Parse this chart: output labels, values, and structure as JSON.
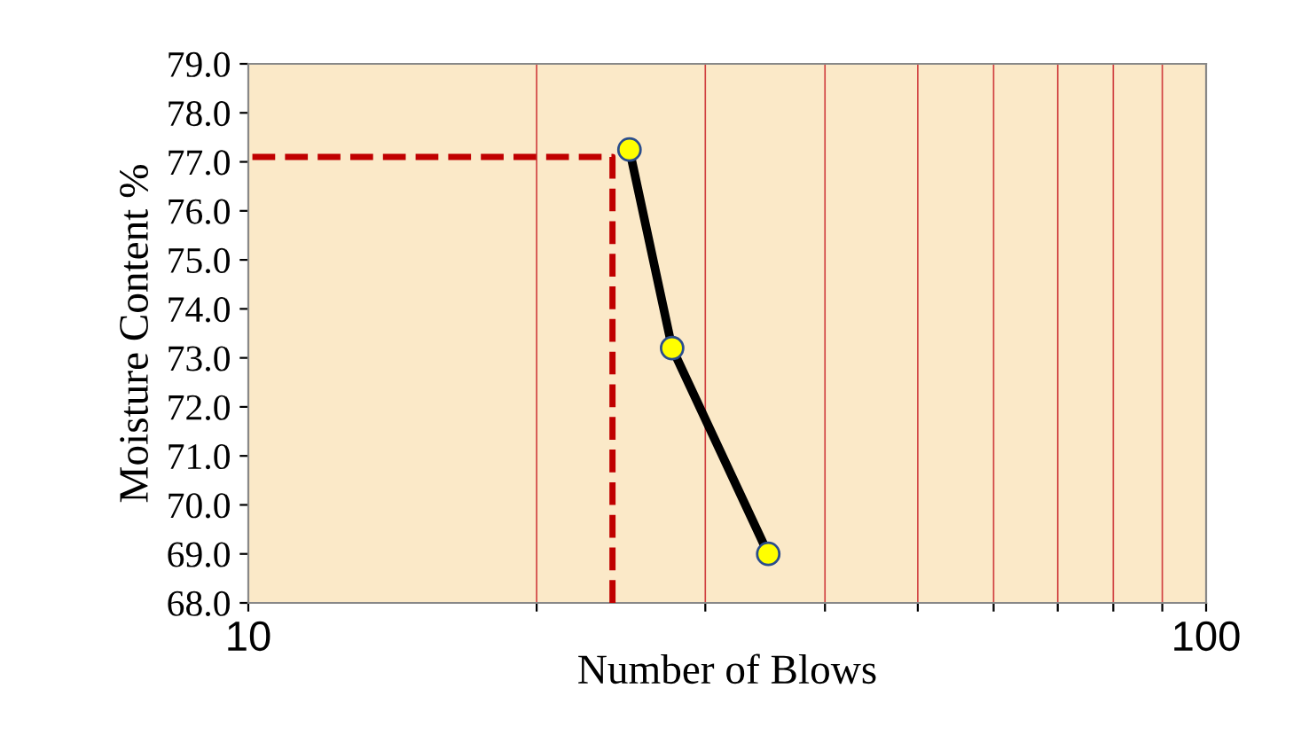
{
  "chart_data": {
    "type": "line",
    "xlabel": "Number of Blows",
    "ylabel": "Moisture Content %",
    "xlim": [
      10,
      100
    ],
    "xticks": [
      10,
      {
        "value": 20,
        "label": null
      },
      {
        "value": 30,
        "label": null
      },
      {
        "value": 40,
        "label": null
      },
      {
        "value": 50,
        "label": null
      },
      {
        "value": 60,
        "label": null
      },
      {
        "value": 70,
        "label": null
      },
      {
        "value": 80,
        "label": null
      },
      {
        "value": 90,
        "label": null
      },
      100
    ],
    "log": "x",
    "ylim": [
      68,
      79
    ],
    "yticks": [
      {
        "value": 68,
        "label": "68.0"
      },
      {
        "value": 69,
        "label": "69.0"
      },
      {
        "value": 70,
        "label": "70.0"
      },
      {
        "value": 71,
        "label": "71.0"
      },
      {
        "value": 72,
        "label": "72.0"
      },
      {
        "value": 73,
        "label": "73.0"
      },
      {
        "value": 74,
        "label": "74.0"
      },
      {
        "value": 75,
        "label": "75.0"
      },
      {
        "value": 76,
        "label": "76.0"
      },
      {
        "value": 77,
        "label": "77.0"
      },
      {
        "value": 78,
        "label": "78.0"
      },
      {
        "value": 79,
        "label": "79.0"
      }
    ],
    "grid": "x",
    "marker": "circle",
    "series": [
      {
        "color": "#c00000",
        "line_style": "dashed",
        "marker": "none",
        "x": [
          24,
          24,
          10
        ],
        "values": [
          68,
          77.1,
          77.1
        ]
      },
      {
        "color": "#000000",
        "line_style": "solid",
        "x": [
          25,
          27.7,
          34.9
        ],
        "values": [
          77.25,
          73.2,
          69.0
        ]
      }
    ]
  }
}
